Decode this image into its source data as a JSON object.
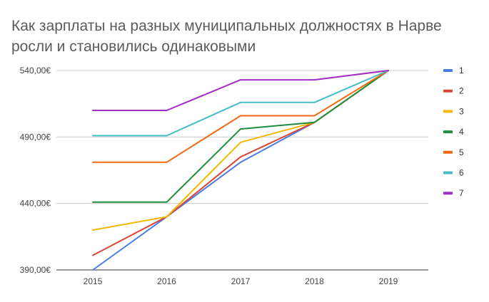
{
  "chart_data": {
    "type": "line",
    "title": "Как зарплаты на разных муниципальных должностях в Нарве росли и становились одинаковыми",
    "xlabel": "",
    "ylabel": "",
    "x": [
      "2015",
      "2016",
      "2017",
      "2018",
      "2019"
    ],
    "yticks": [
      "390,00€",
      "440,00€",
      "490,00€",
      "540,00€"
    ],
    "ytick_values": [
      390,
      440,
      490,
      540
    ],
    "ylim": [
      390,
      540
    ],
    "grid": "horizontal",
    "legend_position": "right",
    "series": [
      {
        "name": "1",
        "color": "#4a7de3",
        "values": [
          390,
          430,
          471,
          501,
          540
        ]
      },
      {
        "name": "2",
        "color": "#d9443a",
        "values": [
          401,
          430,
          475,
          501,
          540
        ]
      },
      {
        "name": "3",
        "color": "#f2b800",
        "values": [
          420,
          430,
          486,
          501,
          540
        ]
      },
      {
        "name": "4",
        "color": "#1e8e3e",
        "values": [
          441,
          441,
          496,
          501,
          540
        ]
      },
      {
        "name": "5",
        "color": "#f06a13",
        "values": [
          471,
          471,
          506,
          506,
          540
        ]
      },
      {
        "name": "6",
        "color": "#46bdc6",
        "values": [
          491,
          491,
          516,
          516,
          540
        ]
      },
      {
        "name": "7",
        "color": "#a22ec5",
        "values": [
          510,
          510,
          533,
          533,
          540
        ]
      }
    ]
  }
}
